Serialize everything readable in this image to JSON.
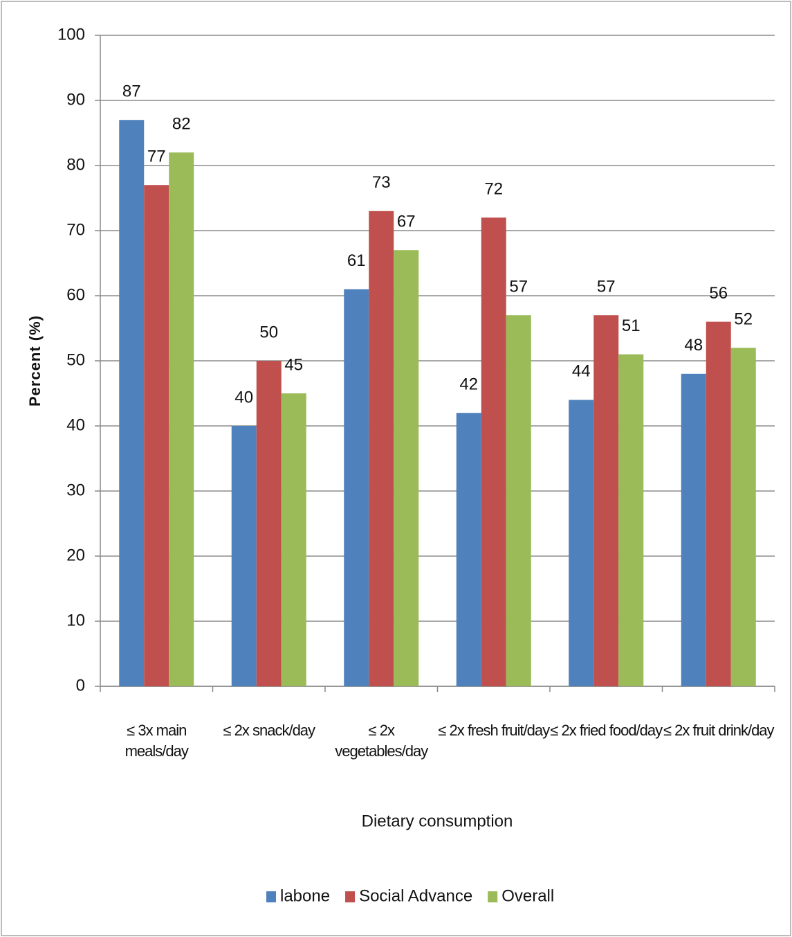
{
  "chart_data": {
    "type": "bar",
    "x_label": "Dietary consumption",
    "y_label": "Percent (%)",
    "categories": [
      "≤ 3x main meals/day",
      "≤ 2x snack/day",
      "≤ 2x vegetables/day",
      "≤ 2x  fresh fruit/day",
      "≤ 2x fried food/day",
      "≤ 2x fruit drink/day"
    ],
    "series": [
      {
        "name": "labone",
        "color": "#4f81bd",
        "values": [
          87,
          40,
          61,
          42,
          44,
          48
        ]
      },
      {
        "name": "Social Advance",
        "color": "#c0504d",
        "values": [
          77,
          50,
          73,
          72,
          57,
          56
        ]
      },
      {
        "name": "Overall",
        "color": "#9bbb59",
        "values": [
          82,
          45,
          67,
          57,
          51,
          52
        ]
      }
    ],
    "ylim": [
      0,
      100
    ],
    "yticks": [
      0,
      10,
      20,
      30,
      40,
      50,
      60,
      70,
      80,
      90,
      100
    ],
    "grid": true,
    "legend": "bottom"
  }
}
